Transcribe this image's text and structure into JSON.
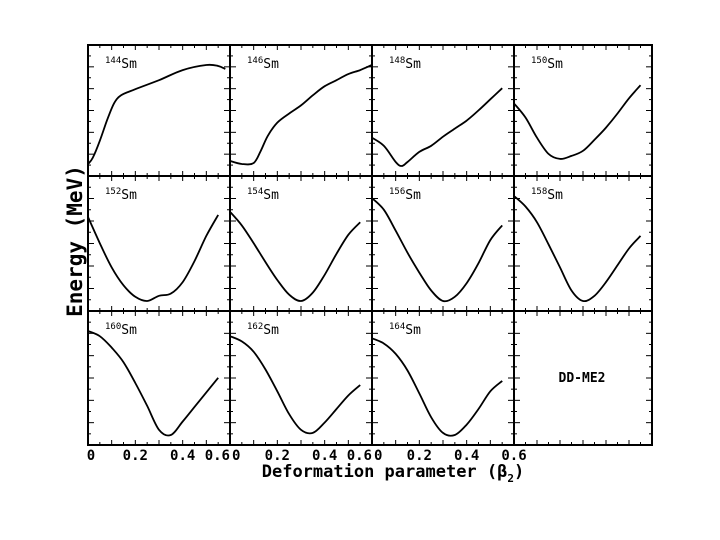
{
  "chart_data": {
    "type": "line",
    "ylabel": "Energy (MeV)",
    "xlabel_main": "Deformation parameter (",
    "xlabel_beta": "β",
    "xlabel_sub": "2",
    "xlabel_close": ")",
    "xlim": [
      0,
      0.6
    ],
    "x_tick_labels_first": [
      "0",
      "0.2",
      "0.4",
      "0.6"
    ],
    "x_tick_labels_rest": [
      "0",
      "0.2",
      "0.4",
      "0.6"
    ],
    "model_label": "DD-ME2",
    "panels": [
      {
        "mass": "144",
        "element": "Sm",
        "x": [
          0,
          0.02,
          0.05,
          0.08,
          0.11,
          0.14,
          0.2,
          0.3,
          0.4,
          0.5,
          0.55,
          0.58
        ],
        "y": [
          0.02,
          0.08,
          0.25,
          0.45,
          0.62,
          0.7,
          0.76,
          0.85,
          0.95,
          1.0,
          0.99,
          0.96
        ]
      },
      {
        "mass": "146",
        "element": "Sm",
        "x": [
          0,
          0.05,
          0.1,
          0.13,
          0.16,
          0.2,
          0.25,
          0.3,
          0.35,
          0.4,
          0.45,
          0.5,
          0.55,
          0.6
        ],
        "y": [
          0.05,
          0.02,
          0.03,
          0.15,
          0.3,
          0.43,
          0.52,
          0.6,
          0.7,
          0.79,
          0.85,
          0.91,
          0.95,
          1.0
        ]
      },
      {
        "mass": "148",
        "element": "Sm",
        "x": [
          0,
          0.05,
          0.1,
          0.125,
          0.15,
          0.2,
          0.25,
          0.3,
          0.35,
          0.4,
          0.45,
          0.5,
          0.55
        ],
        "y": [
          0.28,
          0.2,
          0.04,
          0.0,
          0.04,
          0.14,
          0.2,
          0.29,
          0.37,
          0.45,
          0.55,
          0.66,
          0.77
        ]
      },
      {
        "mass": "150",
        "element": "Sm",
        "x": [
          0,
          0.05,
          0.1,
          0.15,
          0.2,
          0.25,
          0.3,
          0.35,
          0.4,
          0.45,
          0.5,
          0.55
        ],
        "y": [
          0.62,
          0.48,
          0.28,
          0.12,
          0.07,
          0.1,
          0.15,
          0.26,
          0.38,
          0.52,
          0.67,
          0.8
        ]
      },
      {
        "mass": "152",
        "element": "Sm",
        "x": [
          0,
          0.05,
          0.1,
          0.15,
          0.2,
          0.25,
          0.3,
          0.35,
          0.4,
          0.45,
          0.5,
          0.55
        ],
        "y": [
          0.8,
          0.55,
          0.32,
          0.15,
          0.04,
          0.0,
          0.05,
          0.07,
          0.18,
          0.38,
          0.62,
          0.82
        ]
      },
      {
        "mass": "154",
        "element": "Sm",
        "x": [
          0,
          0.05,
          0.1,
          0.15,
          0.2,
          0.25,
          0.3,
          0.35,
          0.4,
          0.45,
          0.5,
          0.55
        ],
        "y": [
          0.85,
          0.72,
          0.55,
          0.37,
          0.2,
          0.06,
          0.0,
          0.08,
          0.25,
          0.45,
          0.63,
          0.75
        ]
      },
      {
        "mass": "156",
        "element": "Sm",
        "x": [
          0,
          0.05,
          0.1,
          0.15,
          0.2,
          0.25,
          0.3,
          0.35,
          0.4,
          0.45,
          0.5,
          0.55
        ],
        "y": [
          0.98,
          0.87,
          0.67,
          0.46,
          0.27,
          0.1,
          0.0,
          0.04,
          0.17,
          0.36,
          0.58,
          0.72
        ]
      },
      {
        "mass": "158",
        "element": "Sm",
        "x": [
          0,
          0.05,
          0.1,
          0.15,
          0.2,
          0.25,
          0.3,
          0.35,
          0.4,
          0.45,
          0.5,
          0.55
        ],
        "y": [
          1.0,
          0.9,
          0.75,
          0.54,
          0.32,
          0.1,
          0.0,
          0.05,
          0.18,
          0.34,
          0.5,
          0.62
        ]
      },
      {
        "mass": "160",
        "element": "Sm",
        "x": [
          0,
          0.05,
          0.1,
          0.15,
          0.2,
          0.25,
          0.3,
          0.35,
          0.4,
          0.45,
          0.5,
          0.55
        ],
        "y": [
          1.0,
          0.95,
          0.84,
          0.7,
          0.5,
          0.28,
          0.05,
          0.0,
          0.13,
          0.27,
          0.41,
          0.55
        ]
      },
      {
        "mass": "162",
        "element": "Sm",
        "x": [
          0,
          0.05,
          0.1,
          0.15,
          0.2,
          0.25,
          0.3,
          0.35,
          0.4,
          0.45,
          0.5,
          0.55
        ],
        "y": [
          0.95,
          0.9,
          0.8,
          0.63,
          0.42,
          0.2,
          0.05,
          0.02,
          0.12,
          0.25,
          0.38,
          0.48
        ]
      },
      {
        "mass": "164",
        "element": "Sm",
        "x": [
          0,
          0.05,
          0.1,
          0.15,
          0.2,
          0.25,
          0.3,
          0.35,
          0.4,
          0.45,
          0.5,
          0.55
        ],
        "y": [
          0.93,
          0.88,
          0.78,
          0.62,
          0.4,
          0.17,
          0.02,
          0.0,
          0.1,
          0.25,
          0.42,
          0.52
        ]
      }
    ]
  }
}
